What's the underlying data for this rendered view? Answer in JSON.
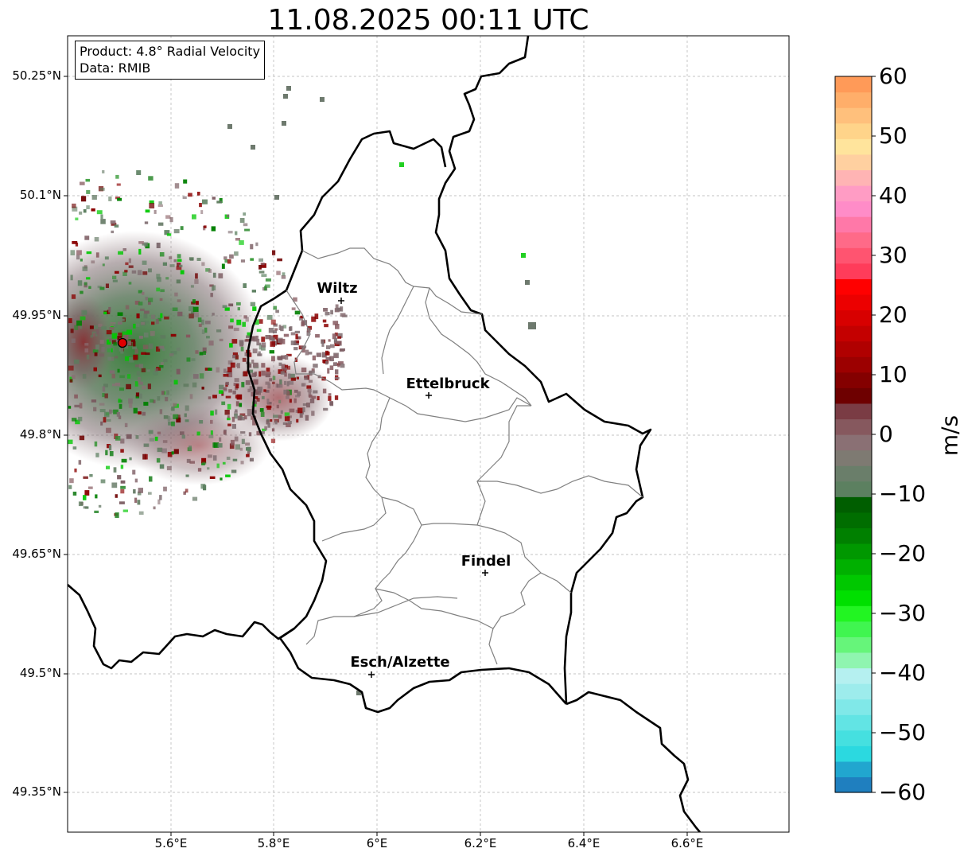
{
  "title": "11.08.2025 00:11 UTC",
  "info": {
    "product": "Product: 4.8° Radial Velocity",
    "data": "Data: RMIB"
  },
  "lat_ticks": [
    "50.25°N",
    "50.1°N",
    "49.95°N",
    "49.8°N",
    "49.65°N",
    "49.5°N",
    "49.35°N"
  ],
  "lon_ticks": [
    "5.6°E",
    "5.8°E",
    "6°E",
    "6.2°E",
    "6.4°E",
    "6.6°E"
  ],
  "cities": [
    {
      "name": "Wiltz"
    },
    {
      "name": "Ettelbruck"
    },
    {
      "name": "Findel"
    },
    {
      "name": "Esch/Alzette"
    }
  ],
  "colorbar": {
    "label": "m/s",
    "ticks": [
      "60",
      "50",
      "40",
      "30",
      "20",
      "10",
      "0",
      "−10",
      "−20",
      "−30",
      "−40",
      "−50",
      "−60"
    ],
    "range": [
      -60,
      60
    ],
    "colors": [
      "#1f7fbf",
      "#21a6cf",
      "#2bd9e0",
      "#45e0e0",
      "#62e4e4",
      "#80e8e8",
      "#9decec",
      "#b5f0f0",
      "#8ff5b0",
      "#66f57a",
      "#40f550",
      "#22f522",
      "#00e000",
      "#00c800",
      "#00b000",
      "#009800",
      "#008000",
      "#006e00",
      "#005e00",
      "#5c8060",
      "#6a7e6a",
      "#7e7a72",
      "#8a7074",
      "#86585e",
      "#7a3c44",
      "#6e0000",
      "#840000",
      "#9c0000",
      "#b00000",
      "#c40000",
      "#d80000",
      "#ec0000",
      "#ff0000",
      "#ff3c5a",
      "#ff5470",
      "#ff6a88",
      "#ff78a8",
      "#ff8cc8",
      "#ff9cc4",
      "#ffb4b4",
      "#ffd0a0",
      "#ffe49c",
      "#ffd48a",
      "#ffc07c",
      "#ffae6a",
      "#ff9a58"
    ]
  }
}
